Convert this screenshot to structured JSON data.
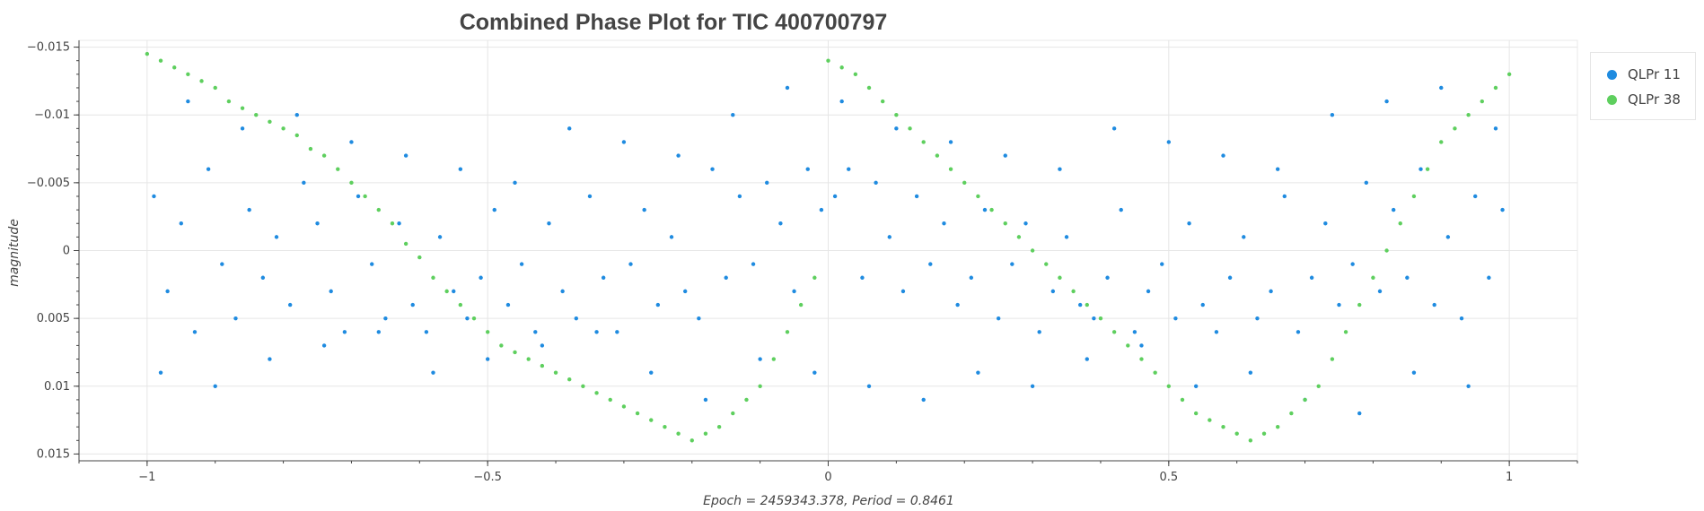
{
  "chart_data": {
    "type": "scatter",
    "title": "Combined Phase Plot for TIC 400700797",
    "xlabel": "Epoch = 2459343.378, Period = 0.8461",
    "ylabel": "magnitude",
    "xlim": [
      -1.1,
      1.1
    ],
    "ylim": [
      0.0155,
      -0.0155
    ],
    "y_inverted": true,
    "x_ticks": [
      -1,
      -0.5,
      0,
      0.5,
      1
    ],
    "x_tick_labels": [
      "−1",
      "−0.5",
      "0",
      "0.5",
      "1"
    ],
    "y_ticks": [
      -0.015,
      -0.01,
      -0.005,
      0,
      0.005,
      0.01,
      0.015
    ],
    "y_tick_labels": [
      "−0.015",
      "−0.01",
      "−0.005",
      "0",
      "0.005",
      "0.01",
      "0.015"
    ],
    "grid": true,
    "legend_position": "outside-top-right",
    "series": [
      {
        "name": "QLPr 11",
        "color": "#1f8be0",
        "x": [
          -0.99,
          -0.97,
          -0.95,
          -0.93,
          -0.91,
          -0.89,
          -0.87,
          -0.85,
          -0.83,
          -0.81,
          -0.79,
          -0.77,
          -0.75,
          -0.73,
          -0.71,
          -0.69,
          -0.67,
          -0.65,
          -0.63,
          -0.61,
          -0.59,
          -0.57,
          -0.55,
          -0.53,
          -0.51,
          -0.49,
          -0.47,
          -0.45,
          -0.43,
          -0.41,
          -0.39,
          -0.37,
          -0.35,
          -0.33,
          -0.31,
          -0.29,
          -0.27,
          -0.25,
          -0.23,
          -0.21,
          -0.19,
          -0.17,
          -0.15,
          -0.13,
          -0.11,
          -0.09,
          -0.07,
          -0.05,
          -0.03,
          -0.01,
          0.01,
          0.03,
          0.05,
          0.07,
          0.09,
          0.11,
          0.13,
          0.15,
          0.17,
          0.19,
          0.21,
          0.23,
          0.25,
          0.27,
          0.29,
          0.31,
          0.33,
          0.35,
          0.37,
          0.39,
          0.41,
          0.43,
          0.45,
          0.47,
          0.49,
          0.51,
          0.53,
          0.55,
          0.57,
          0.59,
          0.61,
          0.63,
          0.65,
          0.67,
          0.69,
          0.71,
          0.73,
          0.75,
          0.77,
          0.79,
          0.81,
          0.83,
          0.85,
          0.87,
          0.89,
          0.91,
          0.93,
          0.95,
          0.97,
          0.99,
          -0.98,
          -0.94,
          -0.9,
          -0.86,
          -0.82,
          -0.78,
          -0.74,
          -0.7,
          -0.66,
          -0.62,
          -0.58,
          -0.54,
          -0.5,
          -0.46,
          -0.42,
          -0.38,
          -0.34,
          -0.3,
          -0.26,
          -0.22,
          -0.18,
          -0.14,
          -0.1,
          -0.06,
          -0.02,
          0.02,
          0.06,
          0.1,
          0.14,
          0.18,
          0.22,
          0.26,
          0.3,
          0.34,
          0.38,
          0.42,
          0.46,
          0.5,
          0.54,
          0.58,
          0.62,
          0.66,
          0.7,
          0.74,
          0.78,
          0.82,
          0.86,
          0.9,
          0.94,
          0.98
        ],
        "y": [
          -0.004,
          0.003,
          -0.002,
          0.006,
          -0.006,
          0.001,
          0.005,
          -0.003,
          0.002,
          -0.001,
          0.004,
          -0.005,
          -0.002,
          0.003,
          0.006,
          -0.004,
          0.001,
          0.005,
          -0.002,
          0.004,
          0.006,
          -0.001,
          0.003,
          0.005,
          0.002,
          -0.003,
          0.004,
          0.001,
          0.006,
          -0.002,
          0.003,
          0.005,
          -0.004,
          0.002,
          0.006,
          0.001,
          -0.003,
          0.004,
          -0.001,
          0.003,
          0.005,
          -0.006,
          0.002,
          -0.004,
          0.001,
          -0.005,
          -0.002,
          0.003,
          -0.006,
          -0.003,
          -0.004,
          -0.006,
          0.002,
          -0.005,
          -0.001,
          0.003,
          -0.004,
          0.001,
          -0.002,
          0.004,
          0.002,
          -0.003,
          0.005,
          0.001,
          -0.002,
          0.006,
          0.003,
          -0.001,
          0.004,
          0.005,
          0.002,
          -0.003,
          0.006,
          0.003,
          0.001,
          0.005,
          -0.002,
          0.004,
          0.006,
          0.002,
          -0.001,
          0.005,
          0.003,
          -0.004,
          0.006,
          0.002,
          -0.002,
          0.004,
          0.001,
          -0.005,
          0.003,
          -0.003,
          0.002,
          -0.006,
          0.004,
          -0.001,
          0.005,
          -0.004,
          0.002,
          -0.003,
          0.009,
          -0.011,
          0.01,
          -0.009,
          0.008,
          -0.01,
          0.007,
          -0.008,
          0.006,
          -0.007,
          0.009,
          -0.006,
          0.008,
          -0.005,
          0.007,
          -0.009,
          0.006,
          -0.008,
          0.009,
          -0.007,
          0.011,
          -0.01,
          0.008,
          -0.012,
          0.009,
          -0.011,
          0.01,
          -0.009,
          0.011,
          -0.008,
          0.009,
          -0.007,
          0.01,
          -0.006,
          0.008,
          -0.009,
          0.007,
          -0.008,
          0.01,
          -0.007,
          0.009,
          -0.006,
          0.011,
          -0.01,
          0.012,
          -0.011,
          0.009,
          -0.012,
          0.01,
          -0.009
        ]
      },
      {
        "name": "QLPr 38",
        "color": "#5ecf5e",
        "x": [
          -1.0,
          -0.98,
          -0.96,
          -0.94,
          -0.92,
          -0.9,
          -0.88,
          -0.86,
          -0.84,
          -0.82,
          -0.8,
          -0.78,
          -0.76,
          -0.74,
          -0.72,
          -0.7,
          -0.68,
          -0.66,
          -0.64,
          -0.62,
          -0.6,
          -0.58,
          -0.56,
          -0.54,
          -0.52,
          -0.5,
          -0.48,
          -0.46,
          -0.44,
          -0.42,
          -0.4,
          -0.38,
          -0.36,
          -0.34,
          -0.32,
          -0.3,
          -0.28,
          -0.26,
          -0.24,
          -0.22,
          -0.2,
          -0.18,
          -0.16,
          -0.14,
          -0.12,
          -0.1,
          -0.08,
          -0.06,
          -0.04,
          -0.02,
          0.0,
          0.02,
          0.04,
          0.06,
          0.08,
          0.1,
          0.12,
          0.14,
          0.16,
          0.18,
          0.2,
          0.22,
          0.24,
          0.26,
          0.28,
          0.3,
          0.32,
          0.34,
          0.36,
          0.38,
          0.4,
          0.42,
          0.44,
          0.46,
          0.48,
          0.5,
          0.52,
          0.54,
          0.56,
          0.58,
          0.6,
          0.62,
          0.64,
          0.66,
          0.68,
          0.7,
          0.72,
          0.74,
          0.76,
          0.78,
          0.8,
          0.82,
          0.84,
          0.86,
          0.88,
          0.9,
          0.92,
          0.94,
          0.96,
          0.98,
          1.0
        ],
        "y": [
          -0.0145,
          -0.014,
          -0.0135,
          -0.013,
          -0.0125,
          -0.012,
          -0.011,
          -0.0105,
          -0.01,
          -0.0095,
          -0.009,
          -0.0085,
          -0.0075,
          -0.007,
          -0.006,
          -0.005,
          -0.004,
          -0.003,
          -0.002,
          -0.0005,
          0.0005,
          0.002,
          0.003,
          0.004,
          0.005,
          0.006,
          0.007,
          0.0075,
          0.008,
          0.0085,
          0.009,
          0.0095,
          0.01,
          0.0105,
          0.011,
          0.0115,
          0.012,
          0.0125,
          0.013,
          0.0135,
          0.014,
          0.0135,
          0.013,
          0.012,
          0.011,
          0.01,
          0.008,
          0.006,
          0.004,
          0.002,
          -0.014,
          -0.0135,
          -0.013,
          -0.012,
          -0.011,
          -0.01,
          -0.009,
          -0.008,
          -0.007,
          -0.006,
          -0.005,
          -0.004,
          -0.003,
          -0.002,
          -0.001,
          0.0,
          0.001,
          0.002,
          0.003,
          0.004,
          0.005,
          0.006,
          0.007,
          0.008,
          0.009,
          0.01,
          0.011,
          0.012,
          0.0125,
          0.013,
          0.0135,
          0.014,
          0.0135,
          0.013,
          0.012,
          0.011,
          0.01,
          0.008,
          0.006,
          0.004,
          0.002,
          0.0,
          -0.002,
          -0.004,
          -0.006,
          -0.008,
          -0.009,
          -0.01,
          -0.011,
          -0.012,
          -0.013
        ]
      }
    ]
  }
}
